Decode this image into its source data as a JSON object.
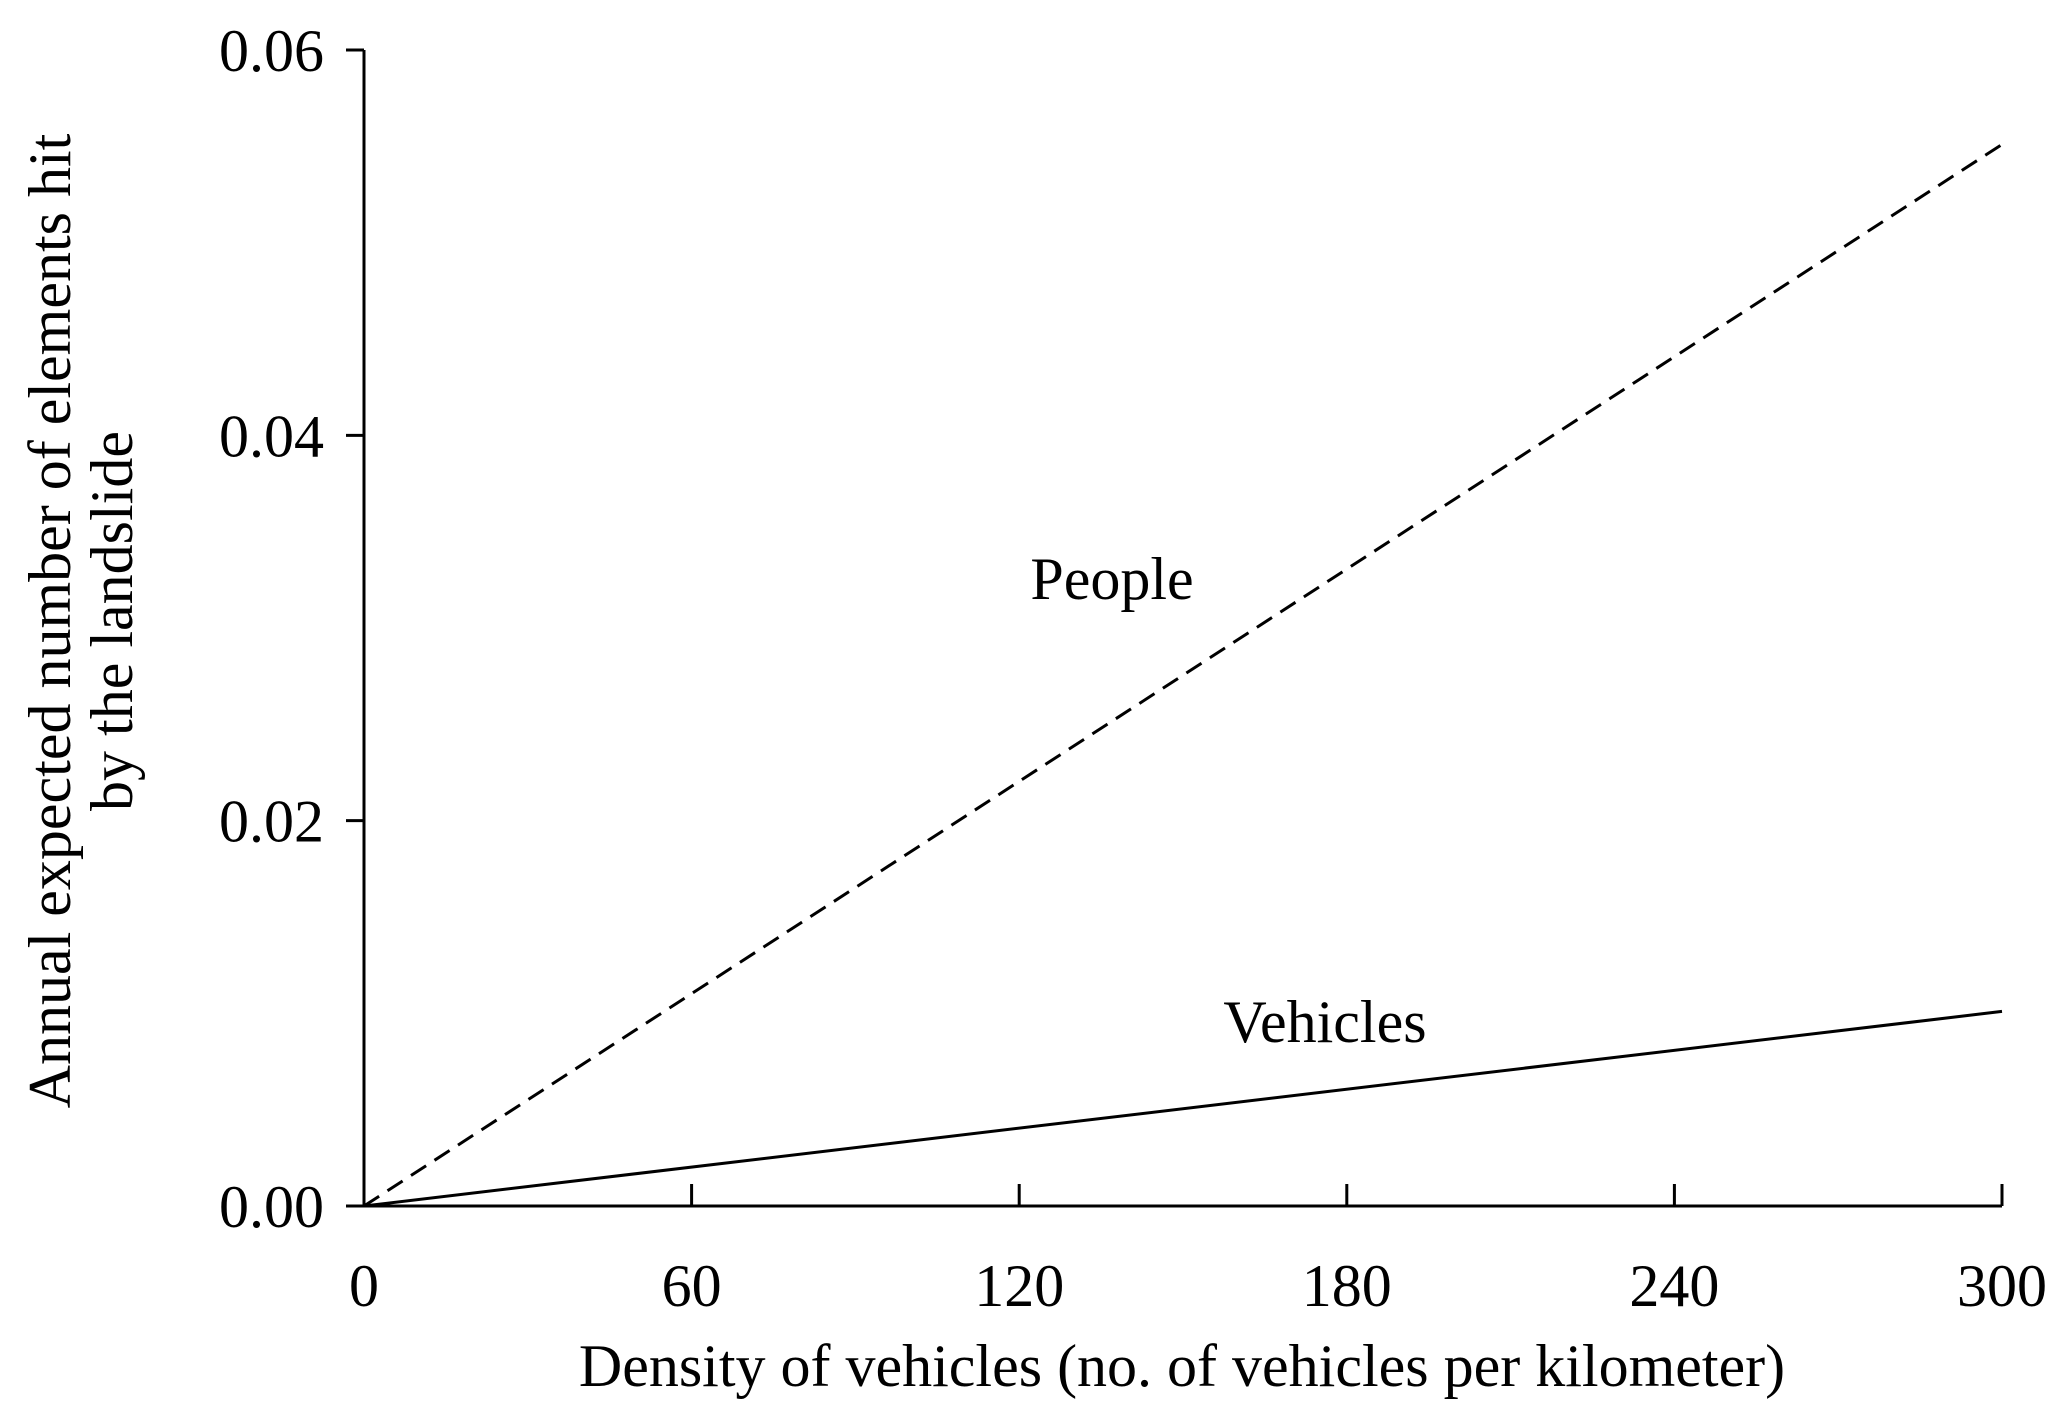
{
  "chart_data": {
    "type": "line",
    "title": "",
    "xlabel": "Density of vehicles (no. of vehicles per kilometer)",
    "ylabel": [
      "Annual expected number of elements hit",
      "by the landslide"
    ],
    "xlim": [
      0,
      300
    ],
    "ylim": [
      0,
      0.06
    ],
    "xticks": [
      0,
      60,
      120,
      180,
      240,
      300
    ],
    "xtick_labels": [
      "0",
      "60",
      "120",
      "180",
      "240",
      "300"
    ],
    "yticks": [
      0,
      0.02,
      0.04,
      0.06
    ],
    "ytick_labels": [
      "0.00",
      "0.02",
      "0.04",
      "0.06"
    ],
    "grid": false,
    "legend": "none (series labeled inline)",
    "series": [
      {
        "name": "People",
        "style": "dashed",
        "color": "#000000",
        "x": [
          0,
          300
        ],
        "y": [
          0,
          0.0551
        ],
        "label_at": {
          "x": 137,
          "y": 0.0315
        }
      },
      {
        "name": "Vehicles",
        "style": "solid",
        "color": "#000000",
        "x": [
          0,
          300
        ],
        "y": [
          0,
          0.0101
        ],
        "label_at": {
          "x": 176,
          "y": 0.0085
        }
      }
    ]
  }
}
